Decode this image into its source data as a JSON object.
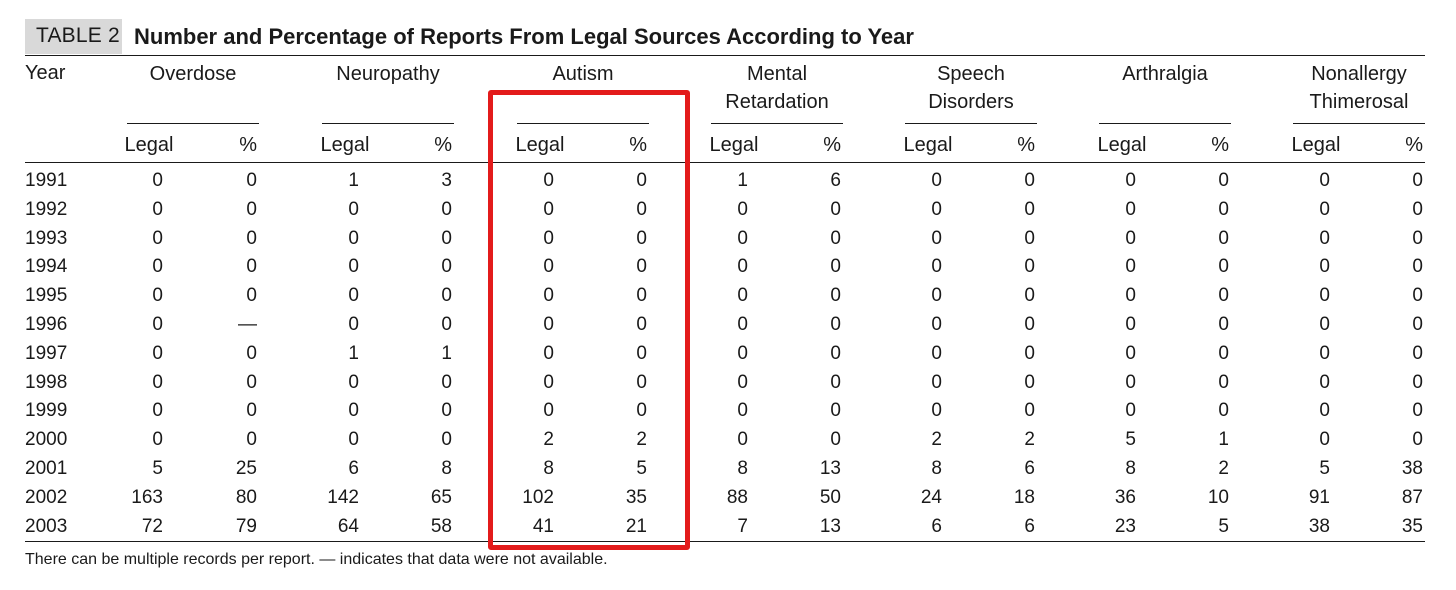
{
  "table_label": "TABLE 2",
  "title": "Number and Percentage of Reports From Legal Sources According to Year",
  "year_header": "Year",
  "groups": [
    {
      "name": "Overdose",
      "sub": [
        "Legal",
        "%"
      ]
    },
    {
      "name": "Neuropathy",
      "sub": [
        "Legal",
        "%"
      ]
    },
    {
      "name": "Autism",
      "sub": [
        "Legal",
        "%"
      ]
    },
    {
      "name": "Mental\nRetardation",
      "sub": [
        "Legal",
        "%"
      ]
    },
    {
      "name": "Speech\nDisorders",
      "sub": [
        "Legal",
        "%"
      ]
    },
    {
      "name": "Arthralgia",
      "sub": [
        "Legal",
        "%"
      ]
    },
    {
      "name": "Nonallergy\nThimerosal",
      "sub": [
        "Legal",
        "%"
      ]
    }
  ],
  "rows": [
    {
      "year": "1991",
      "values": [
        "0",
        "0",
        "1",
        "3",
        "0",
        "0",
        "1",
        "6",
        "0",
        "0",
        "0",
        "0",
        "0",
        "0"
      ]
    },
    {
      "year": "1992",
      "values": [
        "0",
        "0",
        "0",
        "0",
        "0",
        "0",
        "0",
        "0",
        "0",
        "0",
        "0",
        "0",
        "0",
        "0"
      ]
    },
    {
      "year": "1993",
      "values": [
        "0",
        "0",
        "0",
        "0",
        "0",
        "0",
        "0",
        "0",
        "0",
        "0",
        "0",
        "0",
        "0",
        "0"
      ]
    },
    {
      "year": "1994",
      "values": [
        "0",
        "0",
        "0",
        "0",
        "0",
        "0",
        "0",
        "0",
        "0",
        "0",
        "0",
        "0",
        "0",
        "0"
      ]
    },
    {
      "year": "1995",
      "values": [
        "0",
        "0",
        "0",
        "0",
        "0",
        "0",
        "0",
        "0",
        "0",
        "0",
        "0",
        "0",
        "0",
        "0"
      ]
    },
    {
      "year": "1996",
      "values": [
        "0",
        "—",
        "0",
        "0",
        "0",
        "0",
        "0",
        "0",
        "0",
        "0",
        "0",
        "0",
        "0",
        "0"
      ]
    },
    {
      "year": "1997",
      "values": [
        "0",
        "0",
        "1",
        "1",
        "0",
        "0",
        "0",
        "0",
        "0",
        "0",
        "0",
        "0",
        "0",
        "0"
      ]
    },
    {
      "year": "1998",
      "values": [
        "0",
        "0",
        "0",
        "0",
        "0",
        "0",
        "0",
        "0",
        "0",
        "0",
        "0",
        "0",
        "0",
        "0"
      ]
    },
    {
      "year": "1999",
      "values": [
        "0",
        "0",
        "0",
        "0",
        "0",
        "0",
        "0",
        "0",
        "0",
        "0",
        "0",
        "0",
        "0",
        "0"
      ]
    },
    {
      "year": "2000",
      "values": [
        "0",
        "0",
        "0",
        "0",
        "2",
        "2",
        "0",
        "0",
        "2",
        "2",
        "5",
        "1",
        "0",
        "0"
      ]
    },
    {
      "year": "2001",
      "values": [
        "5",
        "25",
        "6",
        "8",
        "8",
        "5",
        "8",
        "13",
        "8",
        "6",
        "8",
        "2",
        "5",
        "38"
      ]
    },
    {
      "year": "2002",
      "values": [
        "163",
        "80",
        "142",
        "65",
        "102",
        "35",
        "88",
        "50",
        "24",
        "18",
        "36",
        "10",
        "91",
        "87"
      ]
    },
    {
      "year": "2003",
      "values": [
        "72",
        "79",
        "64",
        "58",
        "41",
        "21",
        "7",
        "13",
        "6",
        "6",
        "23",
        "5",
        "38",
        "35"
      ]
    }
  ],
  "footnote": "There can be multiple records per report. — indicates that data were not available.",
  "highlight_color": "#e31b1b",
  "label_bg_color": "#d9d9d9"
}
